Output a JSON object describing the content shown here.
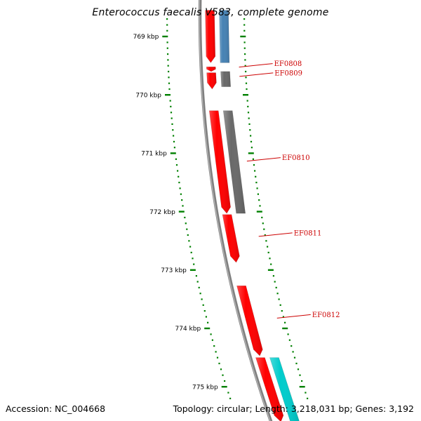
{
  "title": "Enterococcus faecalis V583, complete genome",
  "footer": {
    "accession_label": "Accession:",
    "accession": "NC_004668",
    "topology_label": "Topology:",
    "topology": "circular",
    "length_label": "Length:",
    "length": "3,218,031 bp",
    "genes_label": "Genes:",
    "genes": "3,192"
  },
  "colors": {
    "forward_strand": "#ff0000",
    "reverse_strand_blue": "#4682b4",
    "reverse_strand_gray": "#696969",
    "reverse_strand_cyan": "#00cccc",
    "tick": "#008000",
    "backbone": "#808080",
    "gene_label": "#cc0000"
  },
  "ticks": [
    {
      "kbp": 769,
      "label": "769 kbp"
    },
    {
      "kbp": 770,
      "label": "770 kbp"
    },
    {
      "kbp": 771,
      "label": "771 kbp"
    },
    {
      "kbp": 772,
      "label": "772 kbp"
    },
    {
      "kbp": 773,
      "label": "773 kbp"
    },
    {
      "kbp": 774,
      "label": "774 kbp"
    },
    {
      "kbp": 775,
      "label": "775 kbp"
    }
  ],
  "genes": [
    {
      "strand": "forward",
      "start_kbp": 768.55,
      "end_kbp": 769.45,
      "color": "#ff0000"
    },
    {
      "strand": "reverse",
      "start_kbp": 768.55,
      "end_kbp": 769.45,
      "color": "#4682b4"
    },
    {
      "strand": "forward",
      "start_kbp": 769.52,
      "end_kbp": 769.6,
      "color": "#ff0000"
    },
    {
      "strand": "forward",
      "start_kbp": 769.62,
      "end_kbp": 769.9,
      "color": "#ff0000"
    },
    {
      "strand": "reverse",
      "start_kbp": 769.6,
      "end_kbp": 769.86,
      "color": "#696969"
    },
    {
      "strand": "forward",
      "start_kbp": 770.27,
      "end_kbp": 772.03,
      "color": "#ff0000"
    },
    {
      "strand": "reverse",
      "start_kbp": 770.27,
      "end_kbp": 772.03,
      "color": "#696969"
    },
    {
      "strand": "forward",
      "start_kbp": 772.05,
      "end_kbp": 772.87,
      "color": "#ff0000"
    },
    {
      "strand": "forward",
      "start_kbp": 773.27,
      "end_kbp": 774.47,
      "color": "#ff0000"
    },
    {
      "strand": "forward",
      "start_kbp": 774.5,
      "end_kbp": 775.6,
      "color": "#ff0000"
    },
    {
      "strand": "reverse",
      "start_kbp": 774.5,
      "end_kbp": 775.6,
      "color": "#00cccc"
    }
  ],
  "gene_labels": [
    {
      "name": "EF0808",
      "kbp": 769.5
    },
    {
      "name": "EF0809",
      "kbp": 769.66
    },
    {
      "name": "EF0810",
      "kbp": 771.11
    },
    {
      "name": "EF0811",
      "kbp": 772.4
    },
    {
      "name": "EF0812",
      "kbp": 773.8
    }
  ]
}
